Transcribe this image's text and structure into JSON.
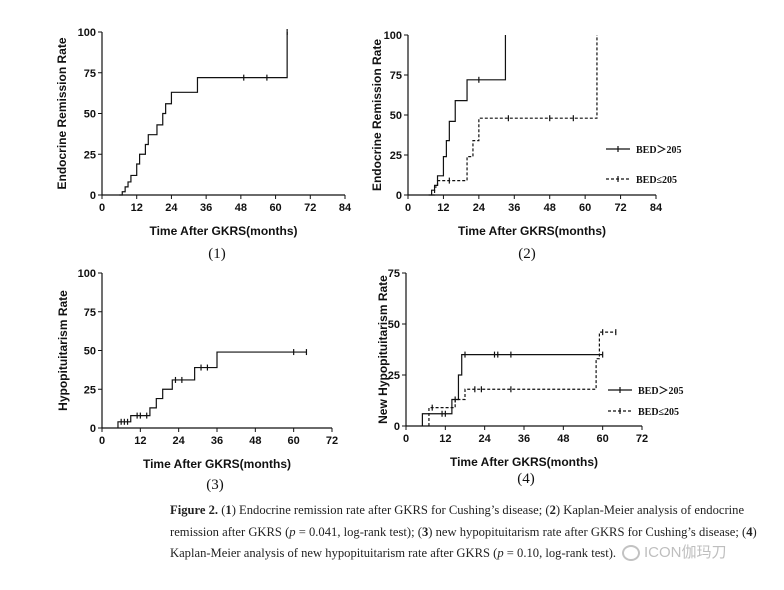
{
  "chart_data": [
    {
      "type": "line",
      "panel_label": "(1)",
      "xlabel": "Time After GKRS(months)",
      "ylabel": "Endocrine Remission Rate",
      "xlim": [
        0,
        84
      ],
      "ylim": [
        0,
        100
      ],
      "xticks": [
        0,
        12,
        24,
        36,
        48,
        60,
        72,
        84
      ],
      "yticks": [
        0,
        25,
        50,
        75,
        100
      ],
      "series": [
        {
          "step": true,
          "dashed": false,
          "points": [
            [
              6,
              0
            ],
            [
              7,
              2
            ],
            [
              8,
              5
            ],
            [
              9,
              8
            ],
            [
              10,
              12
            ],
            [
              12,
              19
            ],
            [
              13,
              25
            ],
            [
              15,
              31
            ],
            [
              16,
              37
            ],
            [
              19,
              43
            ],
            [
              21,
              50
            ],
            [
              22,
              56
            ],
            [
              24,
              63
            ],
            [
              25,
              63
            ],
            [
              32,
              63
            ],
            [
              33,
              72
            ],
            [
              49,
              72
            ],
            [
              57,
              72
            ],
            [
              64,
              72
            ],
            [
              64,
              100
            ]
          ],
          "censored": [
            [
              49,
              72
            ],
            [
              57,
              72
            ],
            [
              64,
              100
            ]
          ]
        }
      ]
    },
    {
      "type": "line",
      "panel_label": "(2)",
      "xlabel": "Time After GKRS(months)",
      "ylabel": "Endocrine Remission Rate",
      "xlim": [
        0,
        84
      ],
      "ylim": [
        0,
        100
      ],
      "xticks": [
        0,
        12,
        24,
        36,
        48,
        60,
        72,
        84
      ],
      "yticks": [
        0,
        25,
        50,
        75,
        100
      ],
      "legend": {
        "position": "right",
        "entries": [
          "BED＞205",
          "BED≤205"
        ]
      },
      "series": [
        {
          "name": "BED＞205",
          "step": true,
          "dashed": false,
          "points": [
            [
              7,
              0
            ],
            [
              8,
              3
            ],
            [
              9,
              6
            ],
            [
              10,
              12
            ],
            [
              12,
              24
            ],
            [
              13,
              34
            ],
            [
              14,
              46
            ],
            [
              16,
              59
            ],
            [
              20,
              72
            ],
            [
              24,
              72
            ],
            [
              33,
              72
            ],
            [
              33,
              100
            ]
          ],
          "censored": [
            [
              24,
              72
            ]
          ]
        },
        {
          "name": "BED≤205",
          "step": true,
          "dashed": true,
          "points": [
            [
              8,
              0
            ],
            [
              9,
              5
            ],
            [
              10,
              9
            ],
            [
              19,
              9
            ],
            [
              20,
              24
            ],
            [
              22,
              34
            ],
            [
              24,
              48
            ],
            [
              34,
              48
            ],
            [
              48,
              48
            ],
            [
              56,
              48
            ],
            [
              64,
              48
            ],
            [
              64,
              100
            ]
          ],
          "censored": [
            [
              14,
              9
            ],
            [
              34,
              48
            ],
            [
              48,
              48
            ],
            [
              56,
              48
            ]
          ]
        }
      ]
    },
    {
      "type": "line",
      "panel_label": "(3)",
      "xlabel": "Time After GKRS(months)",
      "ylabel": "Hypopituitarism Rate",
      "xlim": [
        0,
        72
      ],
      "ylim": [
        0,
        100
      ],
      "xticks": [
        0,
        12,
        24,
        36,
        48,
        60,
        72
      ],
      "yticks": [
        0,
        25,
        50,
        75,
        100
      ],
      "series": [
        {
          "step": true,
          "dashed": false,
          "points": [
            [
              5,
              0
            ],
            [
              5,
              4
            ],
            [
              8,
              4
            ],
            [
              9,
              8
            ],
            [
              13,
              8
            ],
            [
              15,
              13
            ],
            [
              17,
              19
            ],
            [
              19,
              25
            ],
            [
              22,
              31
            ],
            [
              26,
              31
            ],
            [
              29,
              39
            ],
            [
              36,
              39
            ],
            [
              36,
              49
            ],
            [
              60,
              49
            ],
            [
              64,
              49
            ]
          ],
          "censored": [
            [
              6,
              4
            ],
            [
              7,
              4
            ],
            [
              8,
              4
            ],
            [
              11,
              8
            ],
            [
              12,
              8
            ],
            [
              14,
              8
            ],
            [
              23,
              31
            ],
            [
              25,
              31
            ],
            [
              31,
              39
            ],
            [
              33,
              39
            ],
            [
              60,
              49
            ],
            [
              64,
              49
            ]
          ]
        }
      ]
    },
    {
      "type": "line",
      "panel_label": "(4)",
      "xlabel": "Time After GKRS(months)",
      "ylabel": "New Hypopituitarism Rate",
      "xlim": [
        0,
        72
      ],
      "ylim": [
        0,
        75
      ],
      "xticks": [
        0,
        12,
        24,
        36,
        48,
        60,
        72
      ],
      "yticks": [
        0,
        25,
        50,
        75
      ],
      "legend": {
        "position": "right",
        "entries": [
          "BED＞205",
          "BED≤205"
        ]
      },
      "series": [
        {
          "name": "BED＞205",
          "step": true,
          "dashed": false,
          "points": [
            [
              5,
              0
            ],
            [
              5,
              6
            ],
            [
              13,
              6
            ],
            [
              14,
              13
            ],
            [
              16,
              25
            ],
            [
              17,
              35
            ],
            [
              59,
              35
            ],
            [
              60,
              35
            ]
          ],
          "censored": [
            [
              11,
              6
            ],
            [
              12,
              6
            ],
            [
              15,
              13
            ],
            [
              18,
              35
            ],
            [
              27,
              35
            ],
            [
              28,
              35
            ],
            [
              32,
              35
            ],
            [
              60,
              35
            ]
          ]
        },
        {
          "name": "BED≤205",
          "step": true,
          "dashed": true,
          "points": [
            [
              7,
              0
            ],
            [
              7,
              9
            ],
            [
              14,
              9
            ],
            [
              15,
              9
            ],
            [
              15,
              13
            ],
            [
              18,
              13
            ],
            [
              18,
              18
            ],
            [
              58,
              18
            ],
            [
              58,
              33
            ],
            [
              59,
              33
            ],
            [
              59,
              46
            ],
            [
              64,
              46
            ]
          ],
          "censored": [
            [
              8,
              9
            ],
            [
              21,
              18
            ],
            [
              23,
              18
            ],
            [
              32,
              18
            ],
            [
              60,
              46
            ],
            [
              64,
              46
            ]
          ]
        }
      ]
    }
  ],
  "caption": {
    "figure_label": "Figure 2.",
    "text_html": " (<b>1</b>) Endocrine remission rate after GKRS for Cushing’s disease; (<b>2</b>) Kaplan-Meier analysis of endocrine remission after GKRS (<i>p</i> = 0.041, log-rank test); (<b>3</b>) new hypopituitarism rate after GKRS for Cushing’s disease; (<b>4</b>) Kaplan-Meier analysis of new hypopituitarism rate after GKRS (<i>p</i> = 0.10, log-rank test)."
  },
  "watermark": {
    "text": "ICON伽玛刀",
    "icon": "chat-bubble-icon"
  },
  "colors": {
    "line": "#111111",
    "axis": "#111111",
    "text": "#222222",
    "watermark": "#b8b8b8"
  }
}
